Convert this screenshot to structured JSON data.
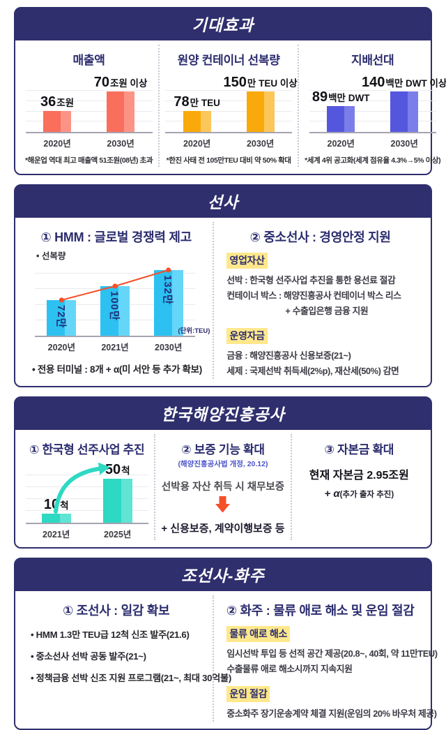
{
  "sections": {
    "expected": {
      "header": "기대효과"
    },
    "carriers": {
      "header": "선사",
      "hmm": {
        "title": "① HMM : 글로벌 경쟁력 제고",
        "chart_label": "• 선복량",
        "unit": "(단위:TEU)",
        "bullet": "• 전용 터미널 : 8개 + α(미 서안 등 추가 확보)"
      },
      "small_carriers": {
        "title": "② 중소선사 : 경영안정 지원",
        "groups": [
          {
            "tag": "영업자산",
            "lines": [
              "선박 : 한국형 선주사업 추진을 통한 용선료 절감",
              "컨테이너 박스 : 해양진흥공사 컨테이너 박스 리스",
              "+ 수출입은행 금융 지원"
            ]
          },
          {
            "tag": "운영자금",
            "lines": [
              "금융 : 해양진흥공사 신용보증(21~)",
              "세제 : 국제선박 취득세(2%p), 재산세(50%) 감면"
            ]
          }
        ]
      }
    },
    "kobc": {
      "header": "한국해양진흥공사",
      "col1": {
        "title": "① 한국형 선주사업 추진"
      },
      "col2": {
        "title": "② 보증 기능 확대",
        "subtitle": "(해양진흥공사법 개정, 20.12)",
        "line1": "선박용 자산 취득 시 채무보증",
        "line2": "+ 신용보증, 계약이행보증 등"
      },
      "col3": {
        "title": "③ 자본금 확대",
        "line1": "현재 자본금 2.95조원",
        "line2_alpha": "+ α",
        "line2_note": "(추가 출자 추진)"
      }
    },
    "shipbuilders": {
      "header": "조선사-화주",
      "left": {
        "title": "① 조선사 : 일감 확보",
        "bullets": [
          "• HMM 1.3만 TEU급 12척 신조 발주(21.6)",
          "• 중소선사 선박 공동 발주(21~)",
          "• 정책금융 선박 신조 지원 프로그램(21~, 최대 30억불)"
        ]
      },
      "right": {
        "title": "② 화주 : 물류 애로 해소 및 운임 절감",
        "groups": [
          {
            "tag": "물류 애로 해소",
            "lines": [
              "임시선박 투입 등 선적 공간 제공(20.8~, 40회, 약 11만TEU)",
              "수출물류 애로 해소시까지 지속지원"
            ]
          },
          {
            "tag": "운임 절감",
            "lines": [
              "중소화주 장기운송계약 체결 지원(운임의 20% 바우처 제공)"
            ]
          }
        ]
      }
    }
  },
  "chart_data": [
    {
      "id": "revenue",
      "type": "bar",
      "title": "매출액",
      "categories": [
        "2020년",
        "2030년"
      ],
      "values": [
        36,
        70
      ],
      "value_labels": [
        {
          "num": "36",
          "suffix": "조원"
        },
        {
          "num": "70",
          "suffix": "조원 이상"
        }
      ],
      "ylim": [
        0,
        80
      ],
      "grid": true,
      "ylabel": "조원",
      "colors": {
        "bar": "#FA6E5C",
        "bar_light": "#FC9486"
      },
      "footnote": "*해운업 역대 최고 매출액 51조원(08년) 초과"
    },
    {
      "id": "container-capacity",
      "type": "bar",
      "title": "원양 컨테이너 선복량",
      "categories": [
        "2020년",
        "2030년"
      ],
      "values": [
        78,
        150
      ],
      "value_labels": [
        {
          "num": "78",
          "suffix": "만 TEU"
        },
        {
          "num": "150",
          "suffix": "만 TEU 이상"
        }
      ],
      "ylim": [
        0,
        170
      ],
      "grid": true,
      "ylabel": "만 TEU",
      "colors": {
        "bar": "#F9A90A",
        "bar_light": "#FBC65A"
      },
      "footnote": "*한진 사태 전 105만TEU 대비 약 50% 확대"
    },
    {
      "id": "controlled-fleet",
      "type": "bar",
      "title": "지배선대",
      "categories": [
        "2020년",
        "2030년"
      ],
      "values": [
        89,
        140
      ],
      "value_labels": [
        {
          "num": "89",
          "suffix": "백만 DWT"
        },
        {
          "num": "140",
          "suffix": "백만 DWT 이상"
        }
      ],
      "ylim": [
        0,
        160
      ],
      "grid": true,
      "ylabel": "백만 DWT",
      "colors": {
        "bar": "#5457DE",
        "bar_light": "#7B7EE8"
      },
      "footnote": "*세계 4위 공고화(세계 점유율 4.3%→5% 이상)"
    },
    {
      "id": "hmm-capacity",
      "type": "bar",
      "overlay_line": true,
      "title": "선복량",
      "categories": [
        "2020년",
        "2021년",
        "2030년"
      ],
      "values": [
        72,
        100,
        132
      ],
      "inside_labels": [
        "72만",
        "100만",
        "132만"
      ],
      "unit_label": "(단위:TEU)",
      "ylim": [
        0,
        140
      ],
      "grid": true,
      "colors": {
        "bar": "#2CC1F1",
        "bar_light": "#65D6F8",
        "line": "#F4502A"
      }
    },
    {
      "id": "kobc-ships",
      "type": "bar",
      "title": "한국형 선주사업 추진",
      "categories": [
        "2021년",
        "2025년"
      ],
      "values": [
        10,
        50
      ],
      "value_labels": [
        {
          "num": "10",
          "suffix": "척"
        },
        {
          "num": "50",
          "suffix": "척"
        }
      ],
      "ylim": [
        0,
        60
      ],
      "grid": true,
      "ylabel": "척",
      "colors": {
        "bar": "#2ED9C3",
        "bar_light": "#60E4D3"
      }
    }
  ]
}
